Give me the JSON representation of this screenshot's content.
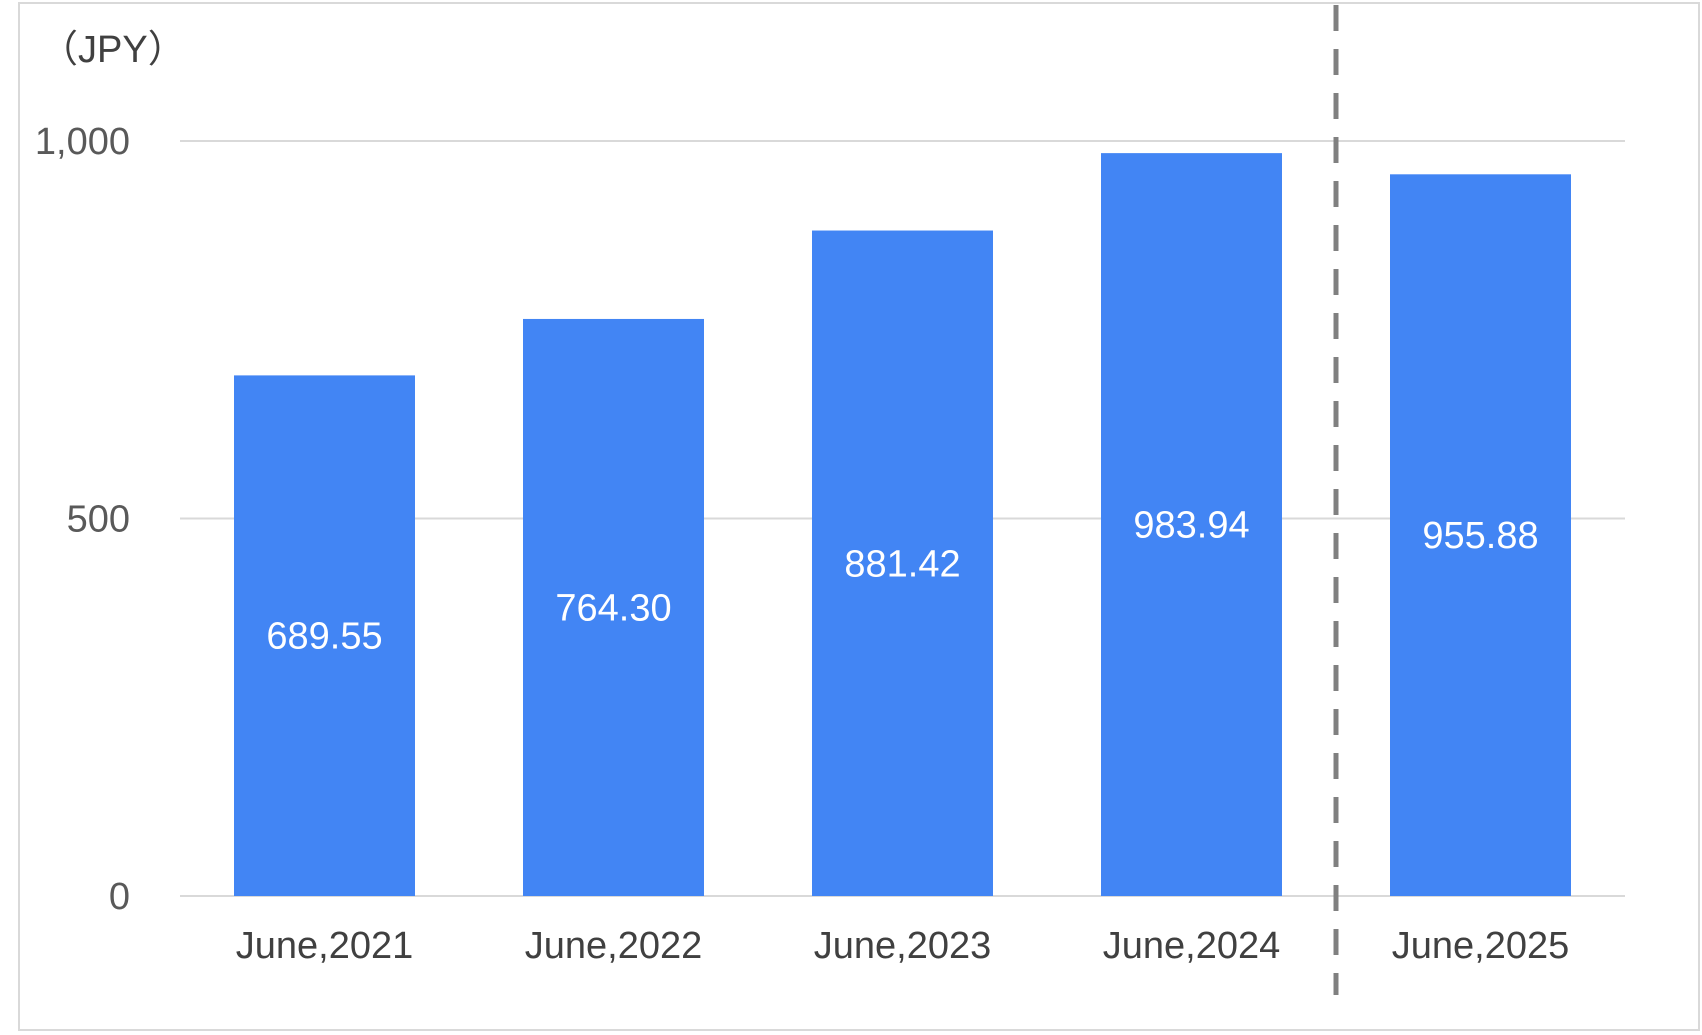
{
  "chart_data": {
    "type": "bar",
    "unit_label": "（JPY）",
    "categories": [
      "June,2021",
      "June,2022",
      "June,2023",
      "June,2024",
      "June,2025"
    ],
    "values": [
      689.55,
      764.3,
      881.42,
      983.94,
      955.88
    ],
    "value_labels": [
      "689.55",
      "764.30",
      "881.42",
      "983.94",
      "955.88"
    ],
    "y_ticks": [
      {
        "value": 0,
        "label": "0"
      },
      {
        "value": 500,
        "label": "500"
      },
      {
        "value": 1000,
        "label": "1,000"
      }
    ],
    "ylim": [
      0,
      1000
    ],
    "grid": true,
    "bar_color": "#4285f4",
    "label_color": "#ffffff",
    "divider": {
      "style": "dashed",
      "between_categories": [
        "June,2024",
        "June,2025"
      ],
      "color": "#808080"
    }
  }
}
